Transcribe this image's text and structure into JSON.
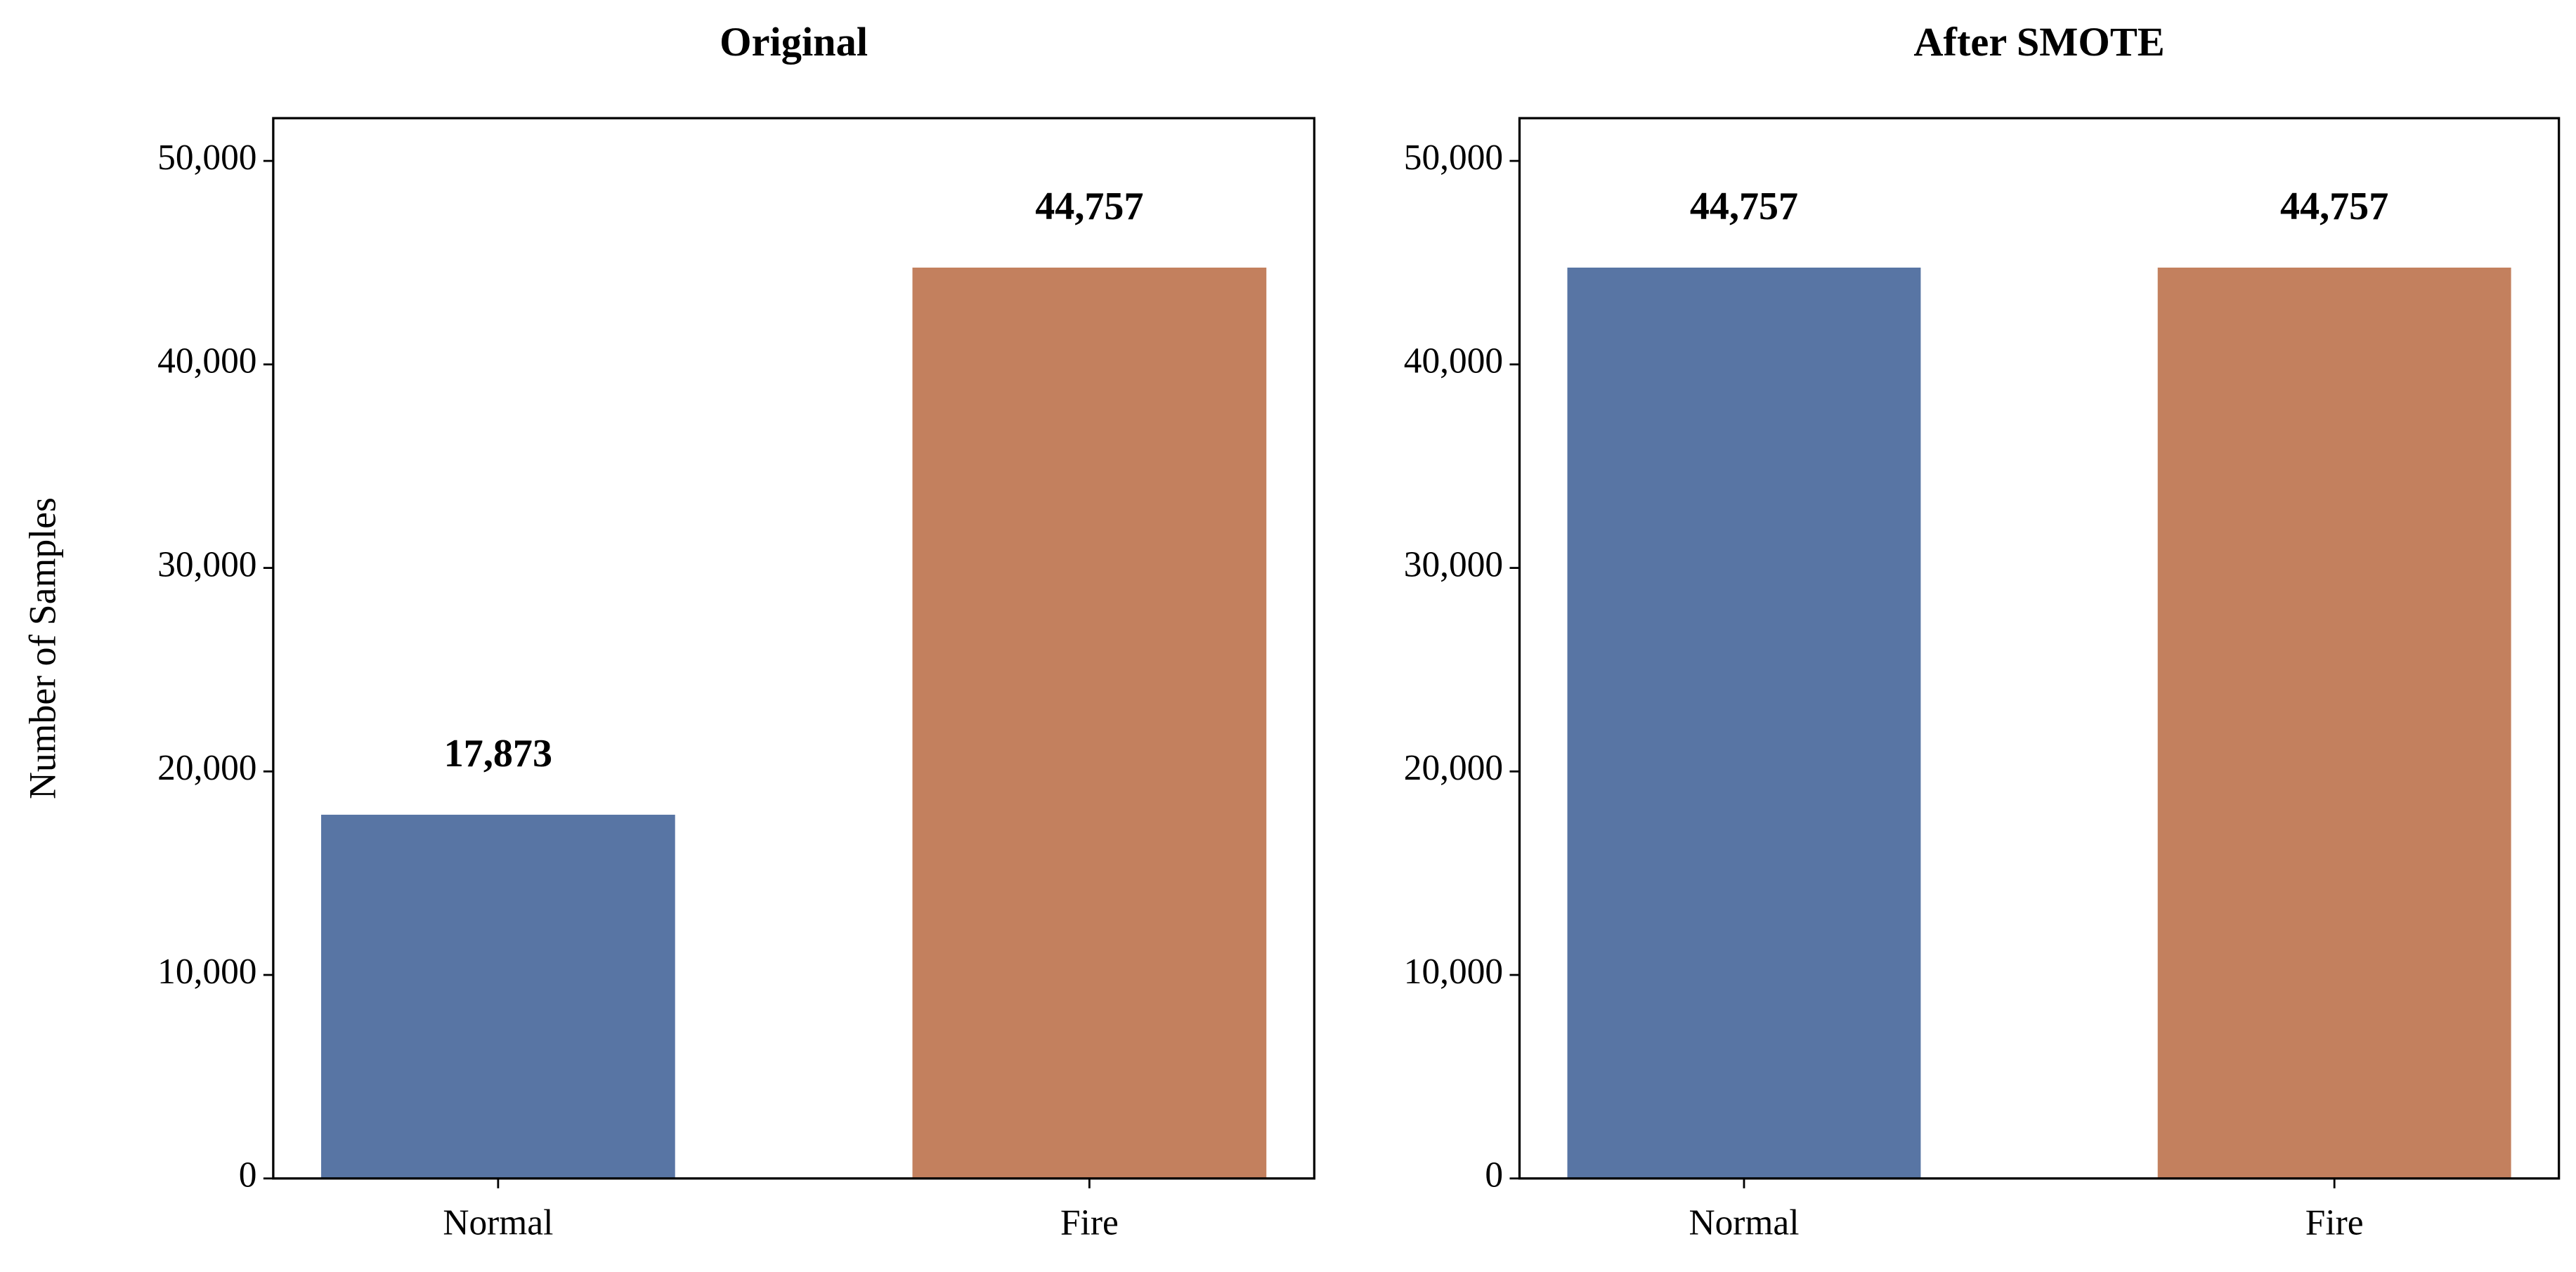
{
  "chart_data": [
    {
      "type": "bar",
      "title": "Original",
      "ylabel": "Number of Samples",
      "categories": [
        "Normal",
        "Fire"
      ],
      "values": [
        17873,
        44757
      ],
      "value_labels": [
        "17,873",
        "44,757"
      ],
      "colors": [
        "#5875a4",
        "#c3805e"
      ],
      "ylim": [
        0,
        52100
      ],
      "yticks": [
        0,
        {
          "value": 10000,
          "label": "10,000"
        },
        {
          "value": 20000,
          "label": "20,000"
        },
        {
          "value": 30000,
          "label": "30,000"
        },
        {
          "value": 40000,
          "label": "40,000"
        },
        {
          "value": 50000,
          "label": "50,000"
        }
      ],
      "grid": false
    },
    {
      "type": "bar",
      "title": "After SMOTE",
      "categories": [
        "Normal",
        "Fire"
      ],
      "values": [
        44757,
        44757
      ],
      "value_labels": [
        "44,757",
        "44,757"
      ],
      "colors": [
        "#5875a4",
        "#c3805e"
      ],
      "ylim": [
        0,
        52100
      ],
      "yticks": [
        0,
        {
          "value": 10000,
          "label": "10,000"
        },
        {
          "value": 20000,
          "label": "20,000"
        },
        {
          "value": 30000,
          "label": "30,000"
        },
        {
          "value": 40000,
          "label": "40,000"
        },
        {
          "value": 50000,
          "label": "50,000"
        }
      ],
      "grid": false
    }
  ]
}
